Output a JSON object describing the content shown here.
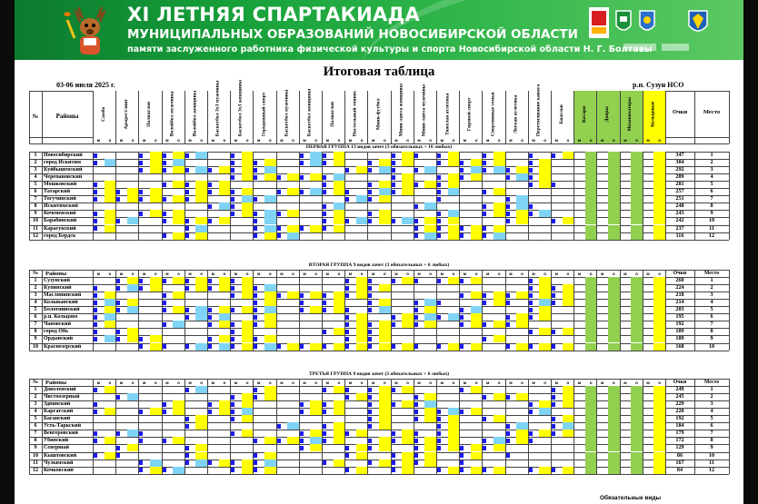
{
  "banner": {
    "title_line1": "XI ЛЕТНЯЯ СПАРТАКИАДА",
    "title_line2": "МУНИЦИПАЛЬНЫХ ОБРАЗОВАНИЙ НОВОСИБИРСКОЙ ОБЛАСТИ",
    "title_line3": "памяти заслуженного работника физической культуры и спорта Новосибирской области Н. Г. Болтавы",
    "logos": [
      "mascot-deer-icon",
      "flag-logo-icon",
      "region-crest-icon",
      "district-crest-icon",
      "ministry-logo-icon",
      "sport-ministry-logo-icon",
      "suzun-crest-icon"
    ],
    "colors": {
      "green_dark": "#0c7a2e",
      "green_light": "#5cc862"
    }
  },
  "sheet": {
    "title": "Итоговая таблица",
    "date": "03-06 июля 2025 г.",
    "place": "р.п. Сузун НСО"
  },
  "header": {
    "num": "№",
    "district": "Районы",
    "sports": [
      "Самбо",
      "Армрестлинг",
      "Полиатлон",
      "Волейбол мужчины",
      "Волейбол женщины",
      "Баскетбол 3x3 мужчины",
      "Баскетбол 3x3 женщины",
      "Городошный спорт",
      "Баскетбол мужчины",
      "Баскетбол женщины",
      "Полиатлон",
      "Настольный теннис",
      "Мини-футбол",
      "Мини-лапта женщины",
      "Мини-лапта мужчины",
      "Тяжелая атлетика",
      "Гиревой спорт",
      "Спортивные семьи",
      "Легкая атлетика",
      "Перетягивание каната",
      "Биатлон",
      "Косари",
      "Дояры",
      "Механизаторы",
      "Кольцевые"
    ],
    "points": "Очки",
    "place": "Место",
    "m": "м",
    "o": "о"
  },
  "groups": [
    {
      "heading": "ПЕРВАЯ ГРУППА 13 видов зачет (3 обязательных + 10 любых)",
      "rows": [
        {
          "n": "1",
          "name": "Новосибирский",
          "points": "347",
          "place": "1"
        },
        {
          "n": "2",
          "name": "город Искитим",
          "points": "304",
          "place": "2"
        },
        {
          "n": "3",
          "name": "Куйбышевский",
          "points": "292",
          "place": "3"
        },
        {
          "n": "4",
          "name": "Черепановский",
          "points": "289",
          "place": "4"
        },
        {
          "n": "5",
          "name": "Мошковский",
          "points": "281",
          "place": "5"
        },
        {
          "n": "6",
          "name": "Татарский",
          "points": "257",
          "place": "6"
        },
        {
          "n": "7",
          "name": "Тогучинский",
          "points": "251",
          "place": "7"
        },
        {
          "n": "8",
          "name": "Искитимский",
          "points": "248",
          "place": "8"
        },
        {
          "n": "9",
          "name": "Коченевский",
          "points": "243",
          "place": "9"
        },
        {
          "n": "10",
          "name": "Барабинский",
          "points": "242",
          "place": "10"
        },
        {
          "n": "11",
          "name": "Карасукский",
          "points": "237",
          "place": "11"
        },
        {
          "n": "12",
          "name": "город Бердск",
          "points": "116",
          "place": "12"
        }
      ]
    },
    {
      "heading": "ВТОРАЯ ГРУППА 9 видов зачет (3 обязательных + 6 любых)",
      "rows": [
        {
          "n": "1",
          "name": "Сузунский",
          "points": "260",
          "place": "1"
        },
        {
          "n": "2",
          "name": "Купинский",
          "points": "224",
          "place": "2"
        },
        {
          "n": "3",
          "name": "Маслянинский",
          "points": "218",
          "place": "3"
        },
        {
          "n": "4",
          "name": "Колыванский",
          "points": "214",
          "place": "4"
        },
        {
          "n": "5",
          "name": "Болотнинский",
          "points": "203",
          "place": "5"
        },
        {
          "n": "6",
          "name": "р.п. Кольцово",
          "points": "195",
          "place": "6"
        },
        {
          "n": "7",
          "name": "Чановский",
          "points": "192",
          "place": "7"
        },
        {
          "n": "8",
          "name": "город Обь",
          "points": "189",
          "place": "8"
        },
        {
          "n": "9",
          "name": "Ордынский",
          "points": "189",
          "place": "9"
        },
        {
          "n": "10",
          "name": "Краснозерский",
          "points": "168",
          "place": "10"
        }
      ]
    },
    {
      "heading": "ТРЕТЬЯ ГРУППА 9 видов зачет (3 обязательных + 6 любых)",
      "rows": [
        {
          "n": "1",
          "name": "Доволенский",
          "points": "249",
          "place": "1"
        },
        {
          "n": "2",
          "name": "Чистоозерный",
          "points": "245",
          "place": "2"
        },
        {
          "n": "3",
          "name": "Здвинский",
          "points": "229",
          "place": "3"
        },
        {
          "n": "4",
          "name": "Каргатский",
          "points": "220",
          "place": "4"
        },
        {
          "n": "5",
          "name": "Баганский",
          "points": "192",
          "place": "5"
        },
        {
          "n": "6",
          "name": "Усть-Таркский",
          "points": "184",
          "place": "6"
        },
        {
          "n": "7",
          "name": "Венгеровский",
          "points": "179",
          "place": "7"
        },
        {
          "n": "8",
          "name": "Убинский",
          "points": "172",
          "place": "8"
        },
        {
          "n": "9",
          "name": "Северный",
          "points": "129",
          "place": "9"
        },
        {
          "n": "10",
          "name": "Кыштовский",
          "points": "86",
          "place": "10"
        },
        {
          "n": "11",
          "name": "Чулымский",
          "points": "167",
          "place": "11"
        },
        {
          "n": "12",
          "name": "Кочковский",
          "points": "84",
          "place": "12"
        }
      ]
    }
  ],
  "footer": {
    "mandatory": "Обязательные виды"
  },
  "colors": {
    "highlight_yellow": "#ffff00",
    "cell_blue": "#1c1cf0",
    "mandatory_green": "#92d050",
    "bad_red": "#ff0000",
    "header_bg": "#d8d8d8"
  }
}
